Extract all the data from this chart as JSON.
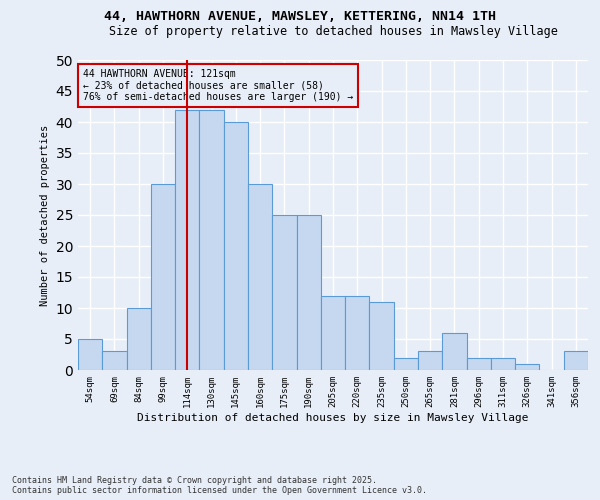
{
  "title_line1": "44, HAWTHORN AVENUE, MAWSLEY, KETTERING, NN14 1TH",
  "title_line2": "Size of property relative to detached houses in Mawsley Village",
  "xlabel": "Distribution of detached houses by size in Mawsley Village",
  "ylabel": "Number of detached properties",
  "bins": [
    "54sqm",
    "69sqm",
    "84sqm",
    "99sqm",
    "114sqm",
    "130sqm",
    "145sqm",
    "160sqm",
    "175sqm",
    "190sqm",
    "205sqm",
    "220sqm",
    "235sqm",
    "250sqm",
    "265sqm",
    "281sqm",
    "296sqm",
    "311sqm",
    "326sqm",
    "341sqm",
    "356sqm"
  ],
  "values": [
    5,
    3,
    10,
    30,
    42,
    42,
    40,
    30,
    25,
    25,
    12,
    12,
    11,
    2,
    3,
    6,
    2,
    2,
    1,
    0,
    3
  ],
  "bar_color": "#c5d8f0",
  "bar_edge_color": "#5b9bd5",
  "vline_bin_index": 4,
  "vline_color": "#cc0000",
  "annotation_text": "44 HAWTHORN AVENUE: 121sqm\n← 23% of detached houses are smaller (58)\n76% of semi-detached houses are larger (190) →",
  "annotation_box_color": "#cc0000",
  "footnote": "Contains HM Land Registry data © Crown copyright and database right 2025.\nContains public sector information licensed under the Open Government Licence v3.0.",
  "ylim": [
    0,
    50
  ],
  "background_color": "#e8eef8",
  "grid_color": "#ffffff"
}
